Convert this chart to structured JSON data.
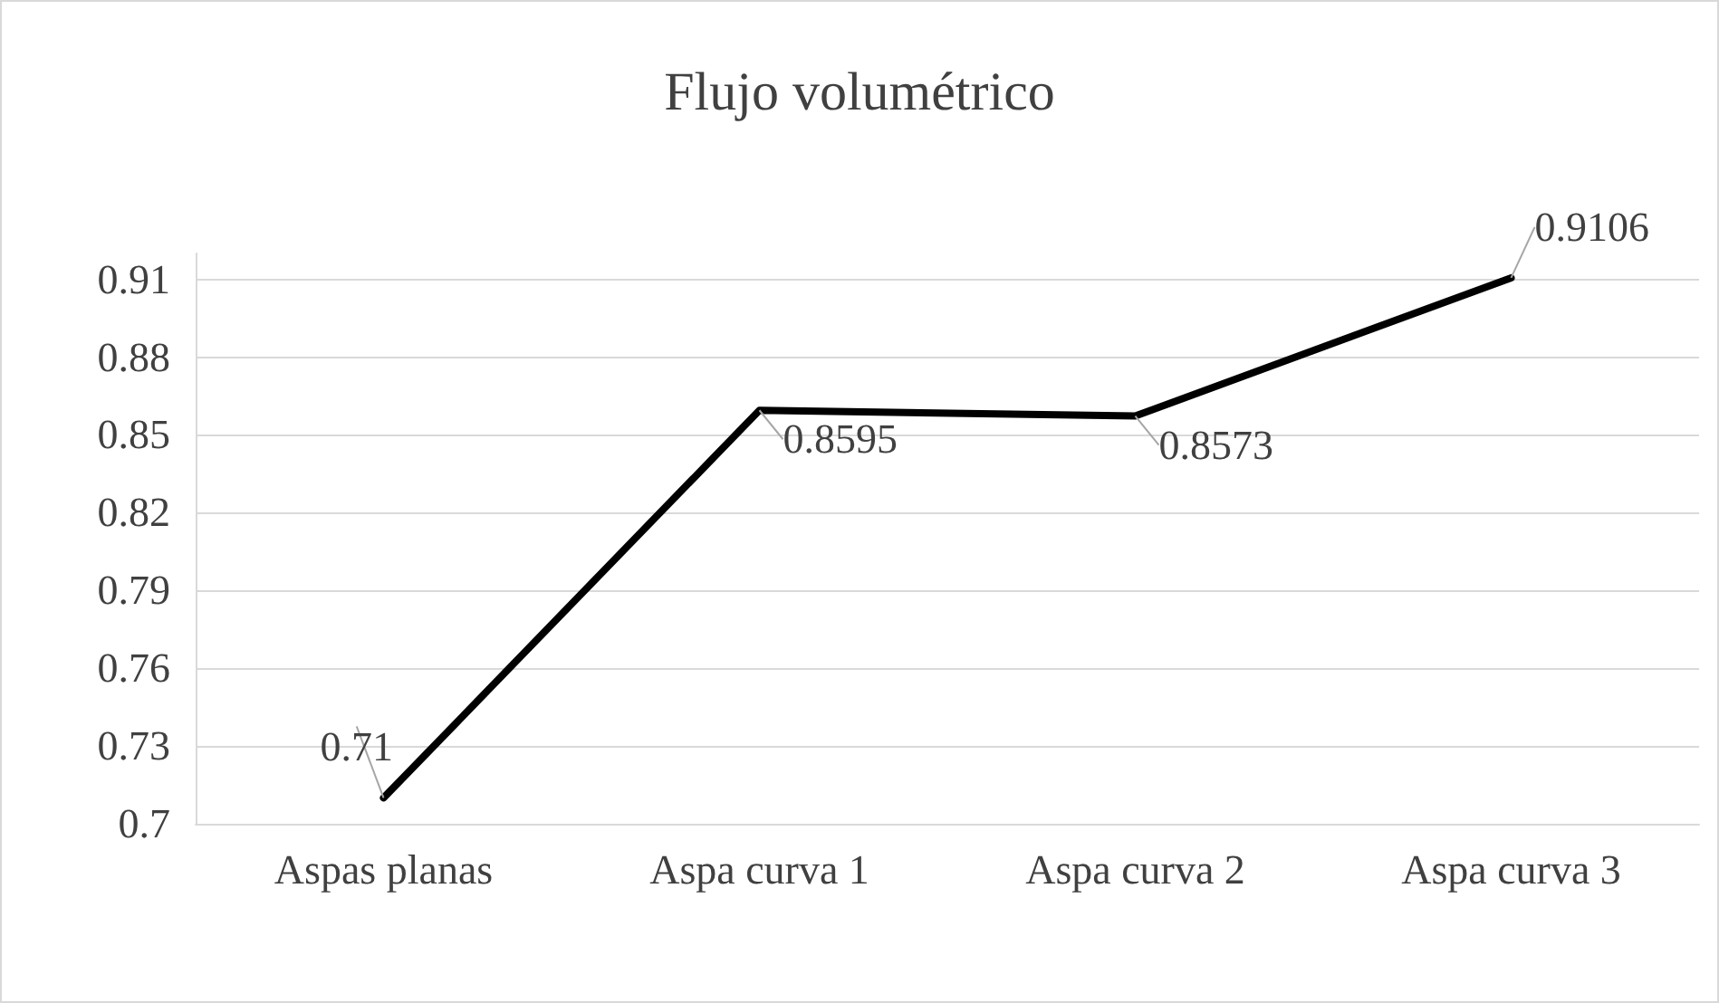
{
  "chart_data": {
    "type": "line",
    "title": "Flujo volumétrico",
    "categories": [
      "Aspas planas",
      "Aspa curva 1",
      "Aspa curva 2",
      "Aspa curva 3"
    ],
    "series": [
      {
        "color": "#000000",
        "values": [
          0.71,
          0.8595,
          0.8573,
          0.9106
        ]
      }
    ],
    "ylim": [
      0.7,
      0.92
    ],
    "yticks": [
      0.7,
      0.73,
      0.76,
      0.79,
      0.82,
      0.85,
      0.88,
      0.91
    ],
    "grid": "y",
    "marker": "none",
    "line_style": "solid",
    "data_labels": true
  }
}
